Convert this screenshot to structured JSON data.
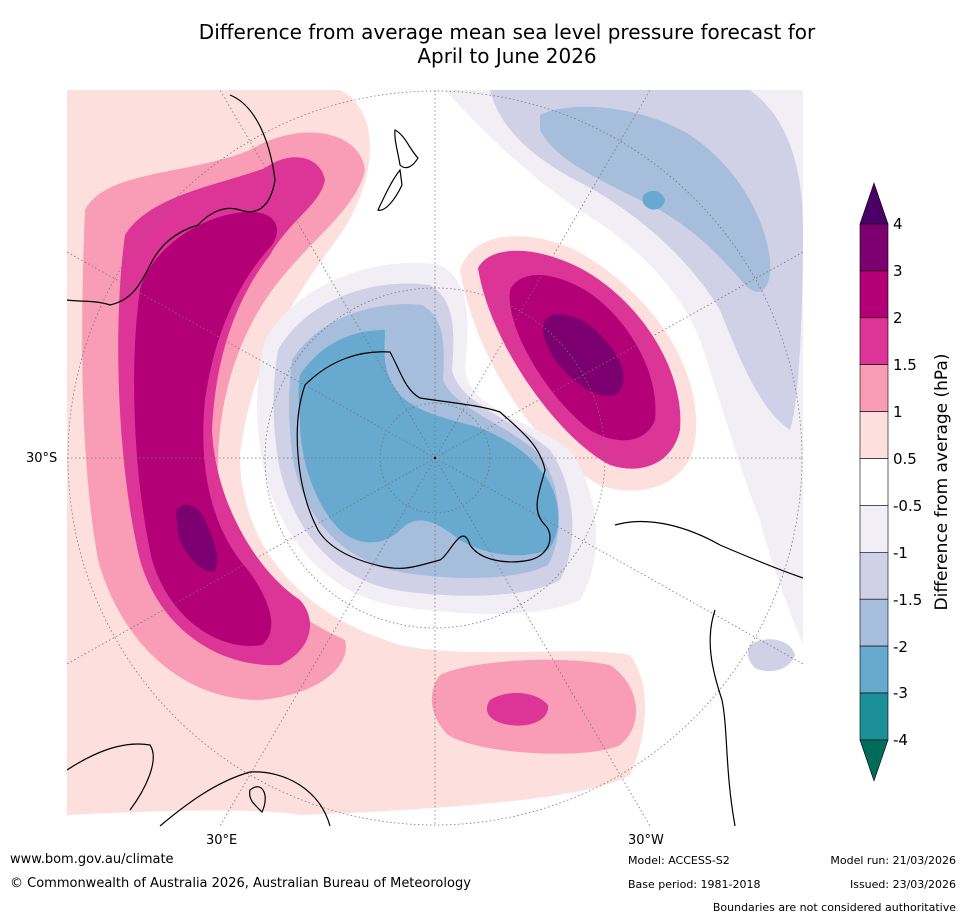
{
  "title_line1": "Difference from average mean sea level pressure forecast for",
  "title_line2": "April to June 2026",
  "labels": {
    "lat_30s": "30°S",
    "lon_30e": "30°E",
    "lon_30w": "30°W"
  },
  "colorbar": {
    "title": "Difference from average (hPa)",
    "tick_labels": [
      "4",
      "3",
      "2",
      "1.5",
      "1",
      "0.5",
      "-0.5",
      "-1",
      "-1.5",
      "-2",
      "-3",
      "-4"
    ],
    "colors": {
      "above_4": "#4b0068",
      "c3_4": "#7d0071",
      "c2_3": "#b30077",
      "c15_2": "#dd3497",
      "c1_15": "#f99cb6",
      "c05_1": "#fde0dd",
      "neutral": "#ffffff",
      "cm1_m05": "#f1eef5",
      "cm15_m1": "#d0d1e6",
      "cm2_m15": "#a6bddb",
      "cm3_m2": "#67a9cf",
      "cm4_m3": "#1c9099",
      "below_m4": "#016c59"
    }
  },
  "footer": {
    "url": "www.bom.gov.au/climate",
    "copyright": "© Commonwealth of Australia 2026, Australian Bureau of Meteorology",
    "model": "Model: ACCESS-S2",
    "base_period": "Base period: 1981-2018",
    "model_run": "Model run: 21/03/2026",
    "issued": "Issued: 23/03/2026",
    "boundaries": "Boundaries are not considered authoritative"
  }
}
